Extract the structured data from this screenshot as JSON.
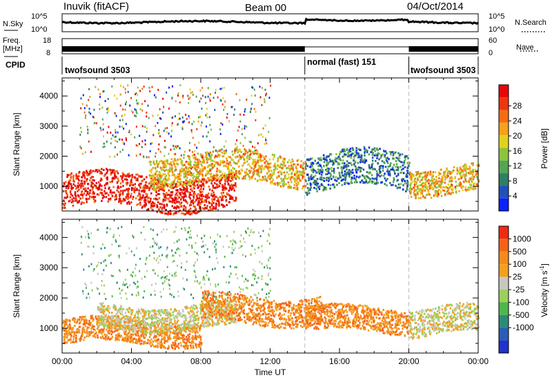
{
  "header": {
    "station": "Inuvik (fitACF)",
    "beam": "Beam 00",
    "date": "04/Oct/2014"
  },
  "left_labels": {
    "nsky": "N.Sky",
    "freq": "Freq.",
    "freq_unit": "[MHz]",
    "cpid": "CPID"
  },
  "right_labels": {
    "nsearch": "N.Search",
    "nave": "Nave"
  },
  "noise_axis": {
    "top": "10^5",
    "bottom": "10^0"
  },
  "freq_axis": {
    "top": "18",
    "bottom": "8"
  },
  "nave_axis": {
    "top": "60",
    "bottom": "0"
  },
  "cpid_segments": [
    {
      "label": "twofsound 3503",
      "start_hour": 0,
      "end_hour": 14
    },
    {
      "label": "normal (fast) 151",
      "start_hour": 14,
      "end_hour": 20
    },
    {
      "label": "twofsound 3503",
      "start_hour": 20,
      "end_hour": 24
    }
  ],
  "chart_data": [
    {
      "type": "heatmap",
      "name": "power",
      "xlabel": "",
      "ylabel": "Slant Range [km]",
      "xlim": [
        0,
        24
      ],
      "ylim": [
        180,
        4600
      ],
      "yticks": [
        1000,
        2000,
        3000,
        4000
      ],
      "colorbar": {
        "label": "Power [dB]",
        "ticks": [
          "4",
          "8",
          "12",
          "16",
          "20",
          "24",
          "28"
        ],
        "colors": [
          "#0b20ff",
          "#2250b8",
          "#2f7e68",
          "#52a653",
          "#8cc43e",
          "#e1d11e",
          "#f5a21a",
          "#f56c14",
          "#ee3510",
          "#e5070a"
        ]
      },
      "features": [
        {
          "desc": "strong band",
          "start_hour": 0,
          "end_hour": 10,
          "range_km": [
            300,
            1400
          ],
          "dB": 28
        },
        {
          "desc": "arc",
          "start_hour": 5,
          "end_hour": 14,
          "range_km": [
            1100,
            2100
          ],
          "dB": 18
        },
        {
          "desc": "weak scatter",
          "start_hour": 14,
          "end_hour": 20,
          "range_km": [
            900,
            2100
          ],
          "dB": 6
        },
        {
          "desc": "band",
          "start_hour": 20,
          "end_hour": 24,
          "range_km": [
            800,
            1700
          ],
          "dB": 18
        }
      ]
    },
    {
      "type": "heatmap",
      "name": "velocity",
      "xlabel": "Time UT",
      "ylabel": "Slant Range [km]",
      "xlim": [
        0,
        24
      ],
      "ylim": [
        180,
        4600
      ],
      "xticks": [
        "00:00",
        "04:00",
        "08:00",
        "12:00",
        "16:00",
        "20:00",
        "00:00"
      ],
      "yticks": [
        1000,
        2000,
        3000,
        4000
      ],
      "colorbar": {
        "label": "Velocity [m s^-1]",
        "ticks": [
          "1000",
          "500",
          "100",
          "25",
          "-25",
          "-100",
          "-500",
          "-1000"
        ],
        "colors": [
          "#1f33c9",
          "#2a5db5",
          "#2e8a78",
          "#4cb84a",
          "#9ccf5b",
          "#c8c8c0",
          "#f2a020",
          "#f58a1c",
          "#f5621a",
          "#ee2a12"
        ]
      },
      "features": [
        {
          "desc": "receding band",
          "start_hour": 0,
          "end_hour": 8,
          "range_km": [
            500,
            1300
          ],
          "velocity": -300
        },
        {
          "desc": "ground scatter",
          "start_hour": 2,
          "end_hour": 10,
          "range_km": [
            1000,
            1800
          ],
          "velocity": 0
        },
        {
          "desc": "arc",
          "start_hour": 8,
          "end_hour": 15,
          "range_km": [
            1200,
            2100
          ],
          "velocity": -200
        },
        {
          "desc": "band",
          "start_hour": 14,
          "end_hour": 20,
          "range_km": [
            900,
            1700
          ],
          "velocity": -200
        },
        {
          "desc": "mixed",
          "start_hour": 20,
          "end_hour": 24,
          "range_km": [
            800,
            1700
          ],
          "velocity": 0
        }
      ]
    }
  ],
  "axis_text": {
    "ylabel": "Slant Range [km]",
    "xlabel": "Time UT",
    "power_label": "Power [dB]",
    "velocity_label": "Velocity [m s",
    "velocity_sup": "-1",
    "velocity_end": "]"
  }
}
